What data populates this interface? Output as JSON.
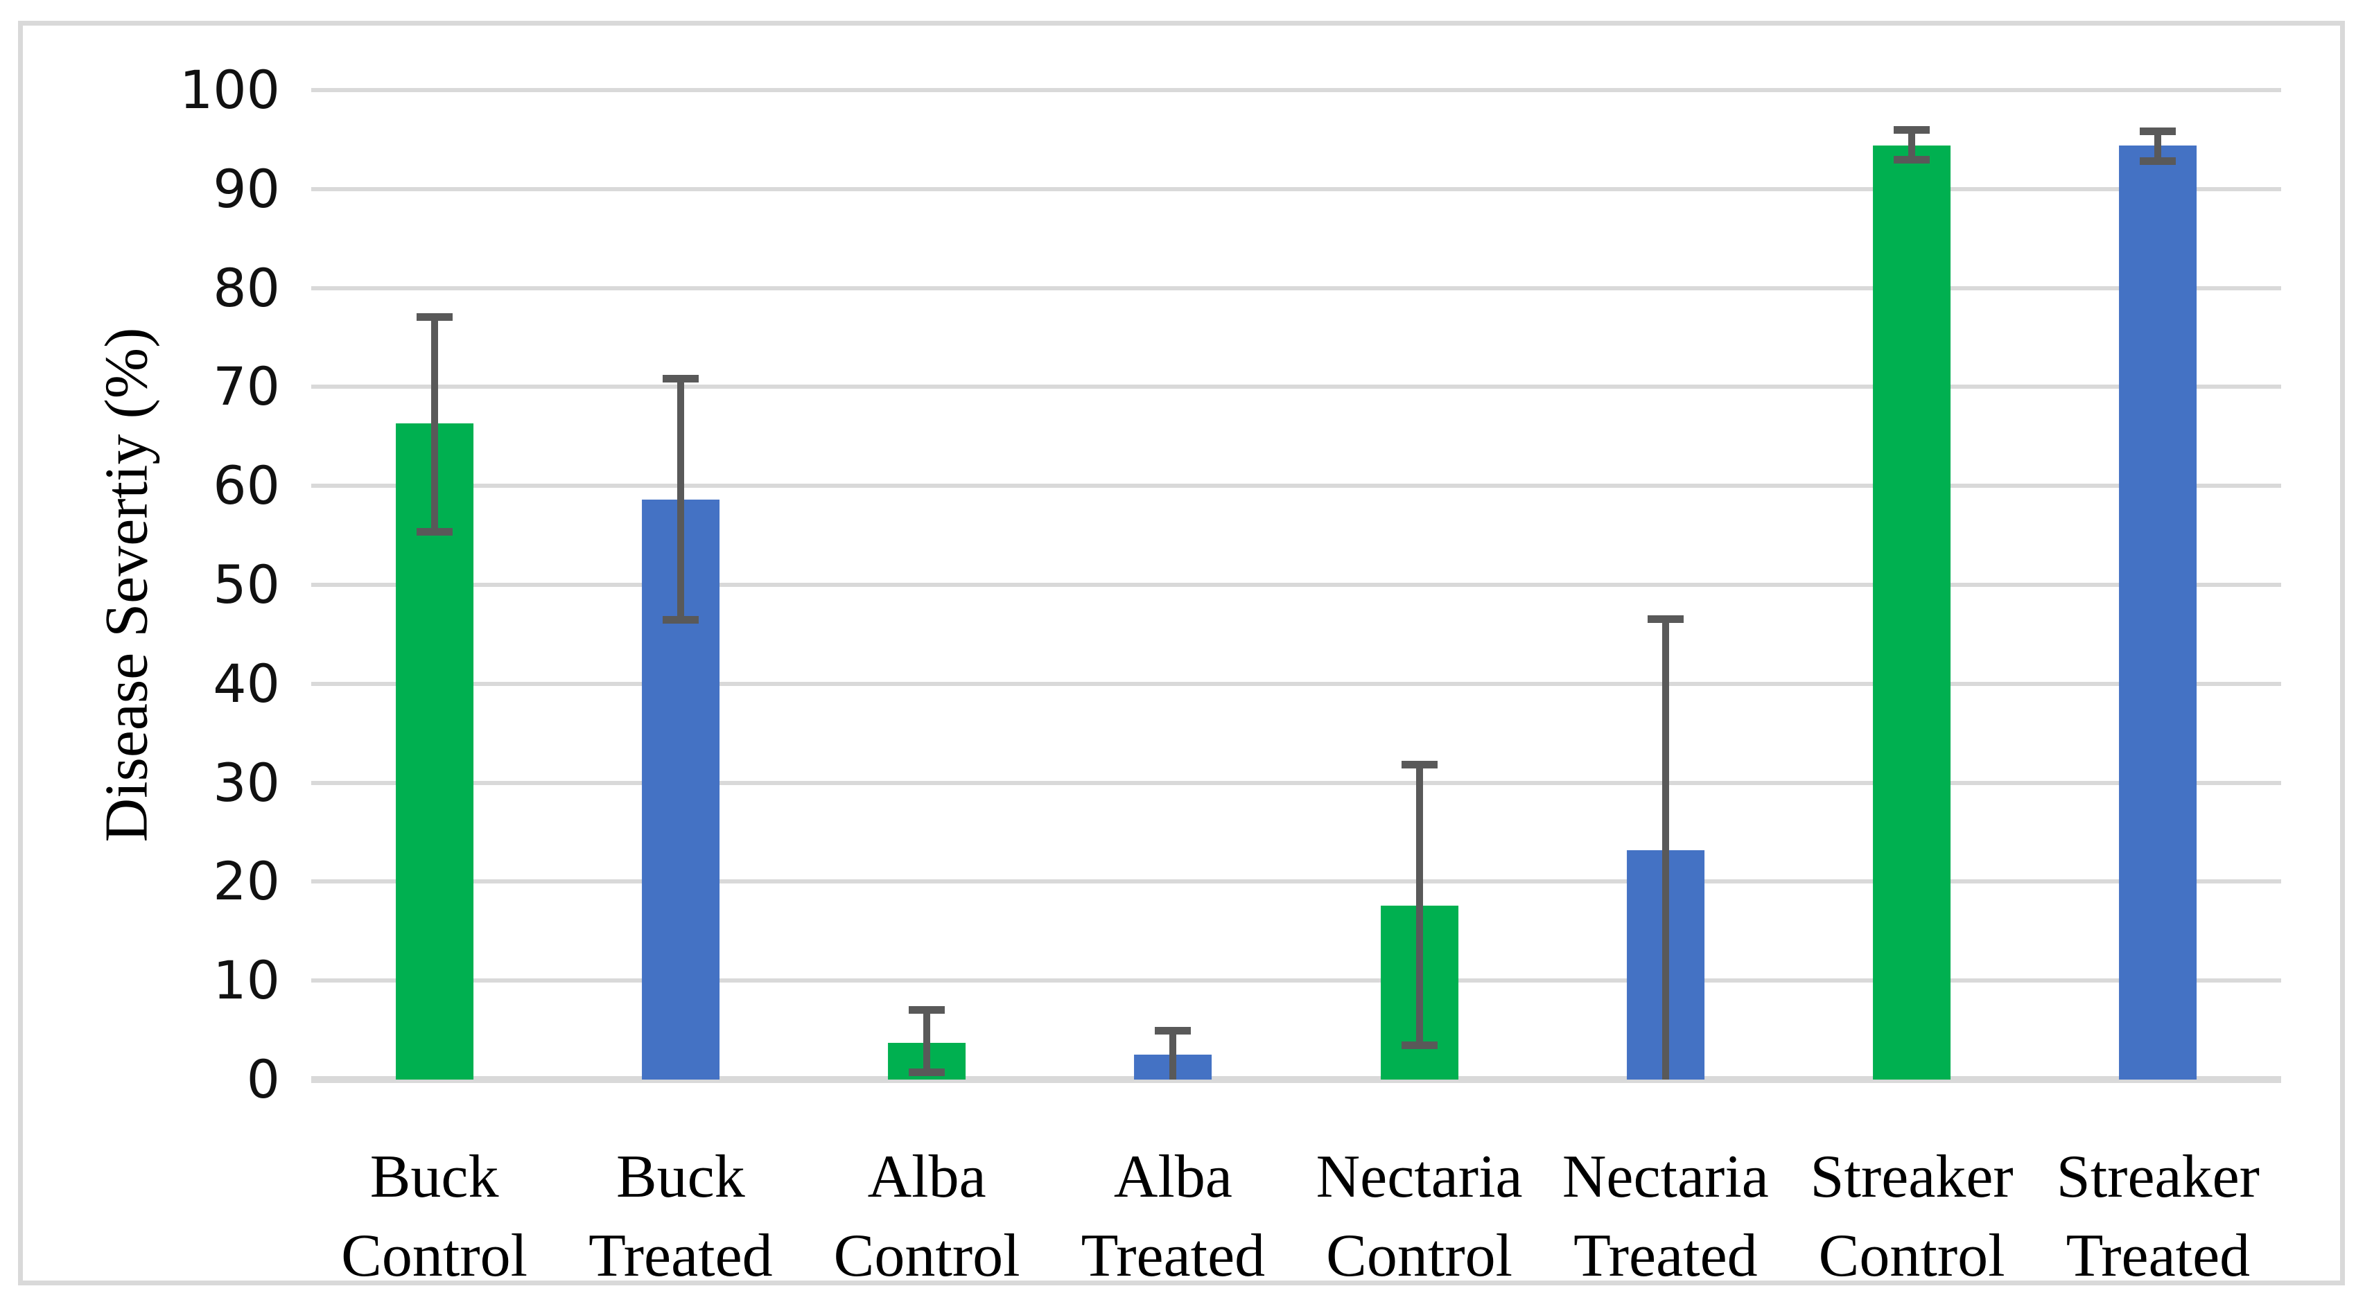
{
  "chart_data": {
    "type": "bar",
    "title": "",
    "ylabel": "Disease Severtiy (%)",
    "xlabel": "",
    "ylim": [
      0,
      100
    ],
    "yticks": [
      0,
      10,
      20,
      30,
      40,
      50,
      60,
      70,
      80,
      90,
      100
    ],
    "grid": "horizontal",
    "legend_position": "none",
    "error_bars": "plus-minus, dark gray caps",
    "categories": [
      "Buck Control",
      "Buck Treated",
      "Alba Control",
      "Alba Treated",
      "Nectaria Control",
      "Nectaria Treated",
      "Streaker Control",
      "Streaker Treated"
    ],
    "bars": [
      {
        "label": [
          "Buck",
          "Control"
        ],
        "series": "Control",
        "value": 66.3,
        "error_low": 55.1,
        "error_high": 77.3,
        "lower_cap_visible": true,
        "color": "#00B050"
      },
      {
        "label": [
          "Buck",
          "Treated"
        ],
        "series": "Treated",
        "value": 58.6,
        "error_low": 46.2,
        "error_high": 71.1,
        "lower_cap_visible": true,
        "color": "#4472C4"
      },
      {
        "label": [
          "Alba",
          "Control"
        ],
        "series": "Control",
        "value": 3.7,
        "error_low": 0.5,
        "error_high": 7.3,
        "lower_cap_visible": true,
        "color": "#00B050"
      },
      {
        "label": [
          "Alba",
          "Treated"
        ],
        "series": "Treated",
        "value": 2.5,
        "error_low": 0,
        "error_high": 5.2,
        "lower_cap_visible": false,
        "color": "#4472C4"
      },
      {
        "label": [
          "Nectaria",
          "Control"
        ],
        "series": "Control",
        "value": 17.6,
        "error_low": 3.2,
        "error_high": 32.1,
        "lower_cap_visible": true,
        "color": "#00B050"
      },
      {
        "label": [
          "Nectaria",
          "Treated"
        ],
        "series": "Treated",
        "value": 23.2,
        "error_low": 0,
        "error_high": 46.8,
        "lower_cap_visible": false,
        "color": "#4472C4"
      },
      {
        "label": [
          "Streaker",
          "Control"
        ],
        "series": "Control",
        "value": 94.4,
        "error_low": 92.7,
        "error_high": 96.2,
        "lower_cap_visible": true,
        "color": "#00B050"
      },
      {
        "label": [
          "Streaker",
          "Treated"
        ],
        "series": "Treated",
        "value": 94.4,
        "error_low": 92.6,
        "error_high": 96.1,
        "lower_cap_visible": true,
        "color": "#4472C4"
      }
    ],
    "colors": {
      "control_green": "#00B050",
      "treated_blue": "#4472C4",
      "error_bar_gray": "#595959",
      "gridline_gray": "#D9D9D9",
      "frame_gray": "#D9D9D9",
      "background": "#FFFFFF"
    }
  }
}
